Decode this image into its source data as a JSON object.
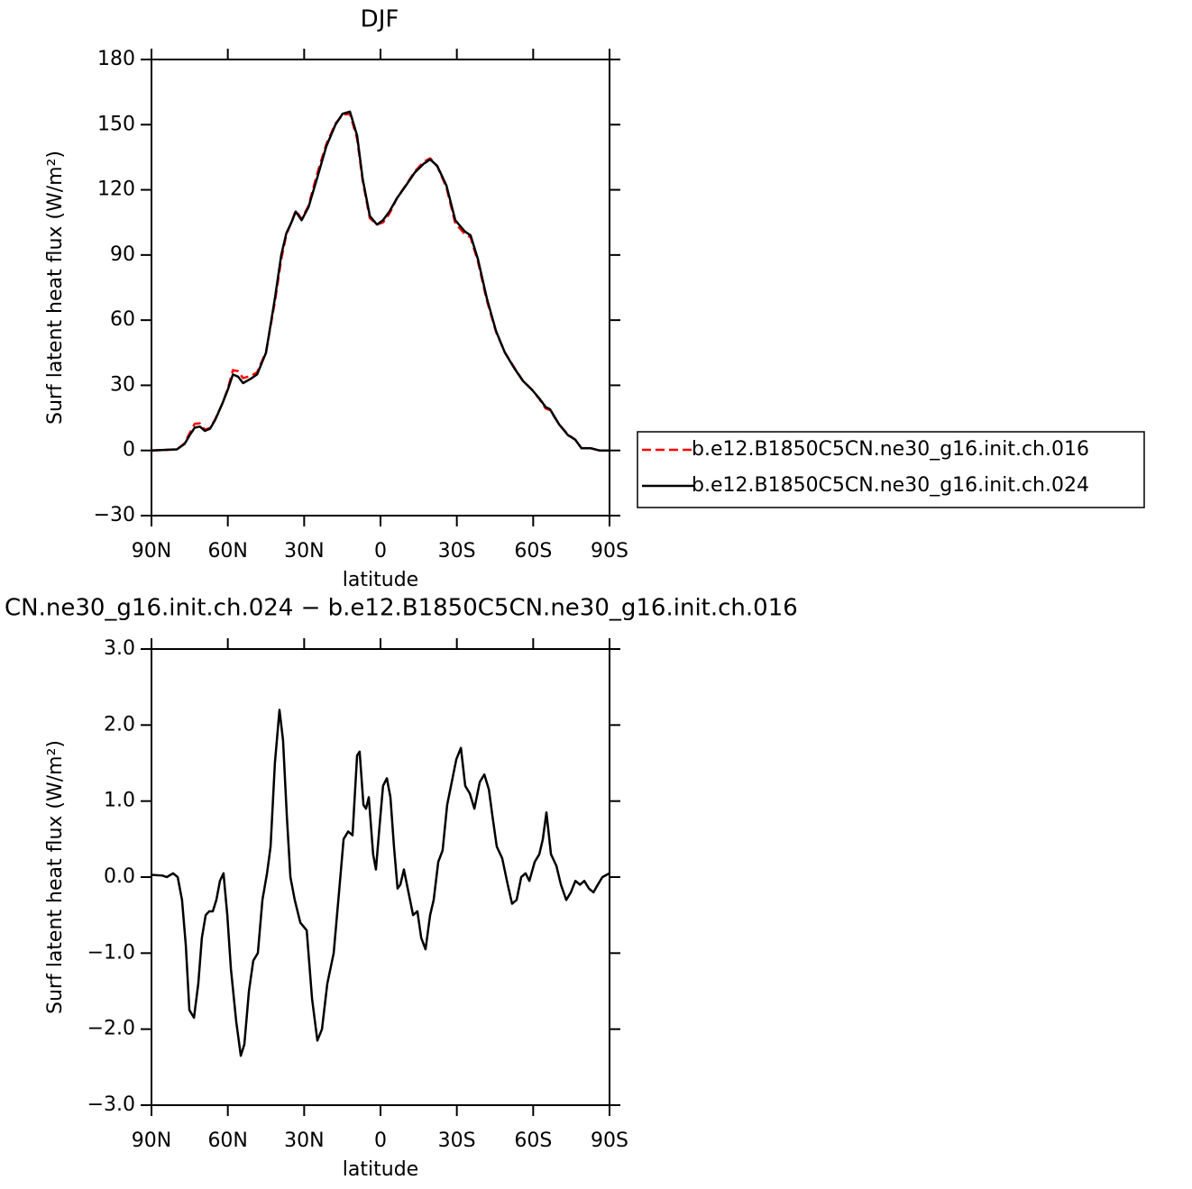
{
  "chart_data": [
    {
      "type": "line",
      "title": "DJF",
      "xlabel": "latitude",
      "ylabel": "Surf latent heat flux (W/m²)",
      "x": [
        90,
        80,
        77,
        75,
        73,
        71,
        69,
        67,
        65,
        62,
        60,
        58,
        56,
        54,
        51,
        48.5,
        45,
        41.5,
        39,
        37,
        35,
        33.3,
        31,
        28.3,
        25,
        21.3,
        17.7,
        14.9,
        12,
        9.2,
        7,
        4.2,
        1.4,
        -1,
        -3.5,
        -6.4,
        -10,
        -13.5,
        -17,
        -19.5,
        -22.3,
        -25.9,
        -29.4,
        -33,
        -35.4,
        -38.3,
        -41.8,
        -45.4,
        -48.9,
        -52.5,
        -56,
        -59.5,
        -62.4,
        -64.9,
        -66.6,
        -70.2,
        -73.7,
        -76.5,
        -79,
        -82.6,
        -86,
        -90
      ],
      "series": [
        {
          "name": "b.e12.B1850C5CN.ne30_g16.init.ch.016",
          "color": "#ff0000",
          "dash": true,
          "values": [
            0,
            0.5,
            3.3,
            8,
            12.3,
            12.5,
            9.5,
            10.4,
            14.3,
            22,
            28.5,
            37,
            36.5,
            33.3,
            34.3,
            36,
            45.3,
            68.5,
            88,
            99.5,
            105,
            110.5,
            106.6,
            112.6,
            127,
            141,
            150.5,
            154.5,
            155,
            143.5,
            124.1,
            107,
            104,
            105,
            109,
            116,
            122.2,
            128.5,
            132.9,
            134.5,
            130.8,
            121.1,
            104.5,
            99.8,
            98.1,
            86.9,
            69,
            54.6,
            45.1,
            38.3,
            32,
            28,
            23.7,
            19.3,
            18.6,
            12,
            7.3,
            5,
            1,
            1.1,
            0,
            0
          ]
        },
        {
          "name": "b.e12.B1850C5CN.ne30_g16.init.ch.024",
          "color": "#000000",
          "dash": false,
          "values": [
            0,
            0.5,
            3,
            7,
            10.5,
            11,
            9,
            10,
            14,
            22,
            28,
            35,
            34,
            31,
            33,
            35,
            45,
            70,
            90,
            100,
            105,
            110,
            106,
            112,
            125,
            140,
            150,
            155,
            156,
            145,
            125,
            108,
            104,
            106,
            110,
            116,
            122,
            128,
            132,
            134,
            131,
            122,
            106,
            101,
            99,
            88,
            70,
            55,
            45,
            38,
            32,
            28,
            24,
            20,
            19,
            12,
            7,
            5,
            1,
            1,
            0,
            0
          ]
        }
      ],
      "xlim": [
        90,
        -90
      ],
      "xticks": [
        {
          "value": 90,
          "label": "90N"
        },
        {
          "value": 60,
          "label": "60N"
        },
        {
          "value": 30,
          "label": "30N"
        },
        0,
        {
          "value": -30,
          "label": "30S"
        },
        {
          "value": -60,
          "label": "60S"
        },
        {
          "value": -90,
          "label": "90S"
        }
      ],
      "ylim": [
        -30,
        180
      ],
      "yticks": [
        {
          "value": -30,
          "label": "−30"
        },
        0,
        30,
        60,
        90,
        120,
        150,
        180
      ],
      "legend": "outside-right"
    },
    {
      "type": "line",
      "title": "CN.ne30_g16.init.ch.024 − b.e12.B1850C5CN.ne30_g16.init.ch.016",
      "xlabel": "latitude",
      "ylabel": "Surf latent heat flux (W/m²)",
      "x": [
        90,
        85.7,
        84,
        81.5,
        79.7,
        78,
        76.5,
        75.1,
        73.3,
        71.6,
        70.2,
        68.7,
        67.3,
        65.9,
        64.5,
        63.1,
        61.7,
        60.2,
        58.8,
        56.7,
        54.9,
        53.5,
        51.7,
        50,
        48.2,
        46.4,
        44.6,
        43.2,
        41.5,
        39.7,
        38.3,
        36.8,
        35.4,
        33.7,
        31.5,
        29,
        26.9,
        24.8,
        23,
        20.9,
        18.4,
        16.3,
        14.5,
        12.7,
        11,
        9.2,
        8.2,
        6.7,
        5.7,
        4.6,
        2.9,
        1.8,
        0.3,
        -1,
        -2.5,
        -3.9,
        -5.3,
        -6.7,
        -7.8,
        -9.2,
        -11,
        -12.8,
        -14.5,
        -16,
        -17.7,
        -19.5,
        -20.9,
        -22.7,
        -24.4,
        -26.2,
        -28,
        -29.8,
        -31.6,
        -33.3,
        -35.1,
        -36.9,
        -39,
        -40.8,
        -42.6,
        -44,
        -45.7,
        -47.8,
        -50,
        -51.7,
        -53.5,
        -55.3,
        -57,
        -58.5,
        -60.6,
        -62.4,
        -63.8,
        -65.2,
        -67,
        -69.1,
        -70.9,
        -73,
        -74.8,
        -76.6,
        -78.4,
        -80.1,
        -81.9,
        -83.7,
        -85.4,
        -87.2,
        -90
      ],
      "series": [
        {
          "color": "#000000",
          "dash": false,
          "values": [
            0.03,
            0.02,
            0,
            0.05,
            0,
            -0.3,
            -0.9,
            -1.75,
            -1.85,
            -1.4,
            -0.8,
            -0.5,
            -0.45,
            -0.45,
            -0.3,
            -0.05,
            0.05,
            -0.5,
            -1.2,
            -1.9,
            -2.35,
            -2.2,
            -1.5,
            -1.1,
            -1,
            -0.3,
            0.05,
            0.4,
            1.5,
            2.2,
            1.8,
            0.8,
            0,
            -0.3,
            -0.6,
            -0.7,
            -1.6,
            -2.15,
            -2,
            -1.4,
            -1,
            -0.2,
            0.5,
            0.6,
            0.55,
            1.6,
            1.65,
            0.95,
            0.9,
            1.05,
            0.3,
            0.1,
            0.7,
            1.2,
            1.3,
            1.05,
            0.4,
            -0.15,
            -0.1,
            0.1,
            -0.2,
            -0.5,
            -0.45,
            -0.8,
            -0.95,
            -0.5,
            -0.3,
            0.2,
            0.35,
            0.95,
            1.25,
            1.55,
            1.7,
            1.2,
            1.1,
            0.9,
            1.25,
            1.35,
            1.15,
            0.8,
            0.4,
            0.25,
            -0.1,
            -0.35,
            -0.3,
            0,
            0.05,
            -0.05,
            0.2,
            0.3,
            0.5,
            0.85,
            0.3,
            0.15,
            -0.1,
            -0.3,
            -0.2,
            -0.05,
            -0.1,
            -0.05,
            -0.15,
            -0.2,
            -0.1,
            0,
            0.05
          ]
        }
      ],
      "xlim": [
        90,
        -90
      ],
      "xticks": [
        {
          "value": 90,
          "label": "90N"
        },
        {
          "value": 60,
          "label": "60N"
        },
        {
          "value": 30,
          "label": "30N"
        },
        0,
        {
          "value": -30,
          "label": "30S"
        },
        {
          "value": -60,
          "label": "60S"
        },
        {
          "value": -90,
          "label": "90S"
        }
      ],
      "ylim": [
        -3,
        3
      ],
      "yticks": [
        {
          "value": -3,
          "label": "−3.0"
        },
        {
          "value": -2,
          "label": "−2.0"
        },
        {
          "value": -1,
          "label": "−1.0"
        },
        {
          "value": 0,
          "label": "0.0"
        },
        {
          "value": 1,
          "label": "1.0"
        },
        {
          "value": 2,
          "label": "2.0"
        },
        {
          "value": 3,
          "label": "3.0"
        }
      ]
    }
  ]
}
